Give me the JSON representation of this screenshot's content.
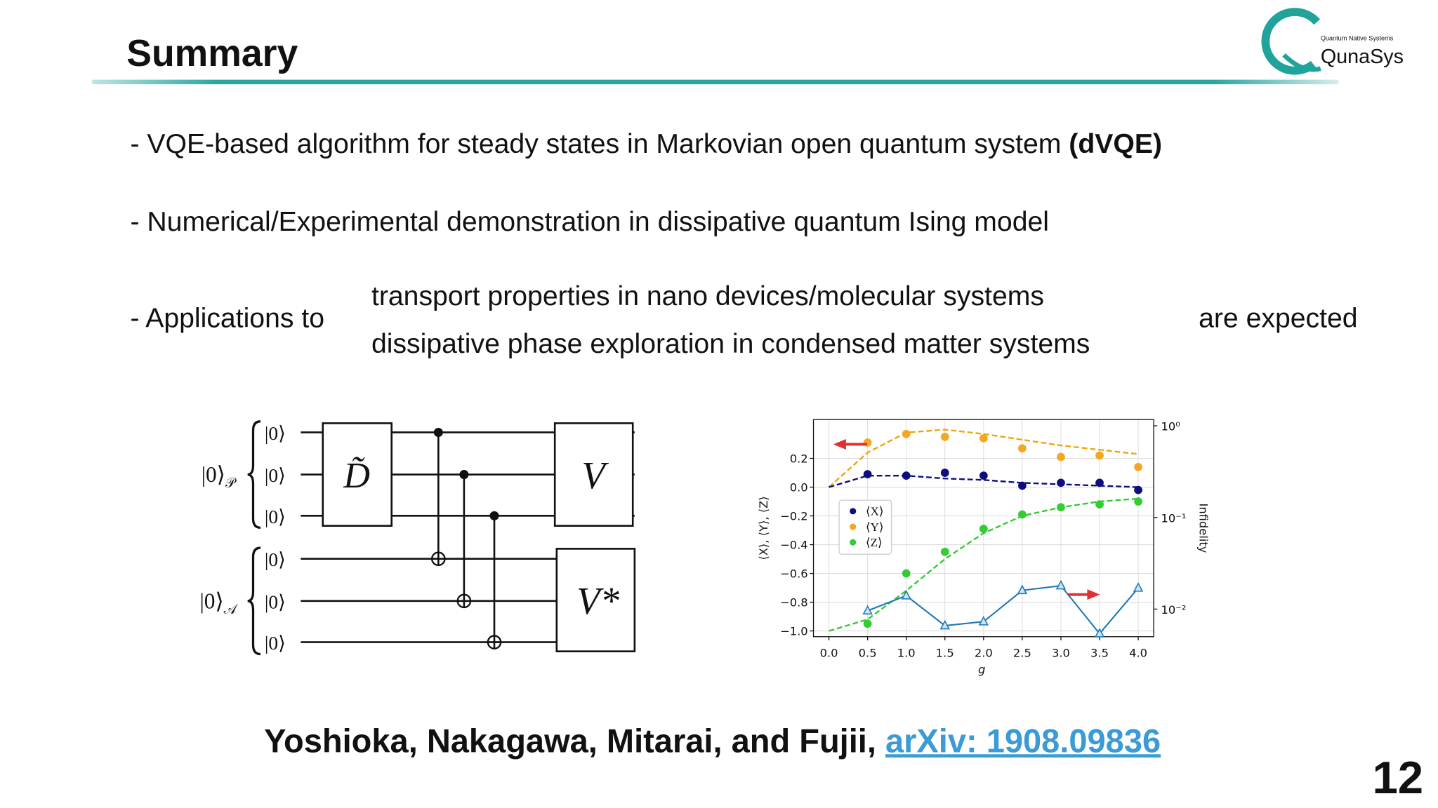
{
  "header": {
    "title": "Summary"
  },
  "logo": {
    "tagline": "Quantum Native Systems",
    "name": "QunaSys"
  },
  "bullets": [
    {
      "text": "- VQE-based algorithm for steady states in Markovian open quantum system",
      "emphasis": "(dVQE)"
    },
    {
      "text": "- Numerical/Experimental demonstration in dissipative quantum Ising model"
    }
  ],
  "applications": {
    "lead": "- Applications to",
    "items": [
      "transport properties in nano devices/molecular systems",
      "dissipative phase exploration in condensed matter systems"
    ],
    "tail": "are expected"
  },
  "circuit": {
    "registers": [
      {
        "ket": "|0⟩",
        "sub": "𝒫"
      },
      {
        "ket": "|0⟩",
        "sub": "𝒜"
      }
    ],
    "qubit_labels": [
      "|0⟩",
      "|0⟩",
      "|0⟩",
      "|0⟩",
      "|0⟩",
      "|0⟩"
    ],
    "gates": [
      "D̃",
      "V",
      "V*"
    ]
  },
  "chart_data": {
    "type": "scatter",
    "x": [
      0,
      0.5,
      1,
      1.5,
      2,
      2.5,
      3,
      3.5,
      4
    ],
    "xlabel": "g",
    "ylabel": "⟨X⟩, ⟨Y⟩, ⟨Z⟩",
    "y2label": "Infidelity",
    "xlim": [
      -0.2,
      4.2
    ],
    "ylim": [
      -1.04,
      0.47
    ],
    "y2lim": [
      0.005,
      1.17
    ],
    "y2scale": "log",
    "grid": true,
    "legend_loc": "center left",
    "xticks": [
      {
        "value": 0,
        "label": "0.0"
      },
      0.5,
      {
        "value": 1,
        "label": "1.0"
      },
      1.5,
      {
        "value": 2,
        "label": "2.0"
      },
      2.5,
      {
        "value": 3,
        "label": "3.0"
      },
      3.5,
      {
        "value": 4,
        "label": "4.0"
      }
    ],
    "yticks": [
      {
        "value": 0.2,
        "label": "0.2"
      },
      {
        "value": 0,
        "label": "0.0"
      },
      {
        "value": -0.2,
        "label": "−0.2"
      },
      {
        "value": -0.4,
        "label": "−0.4"
      },
      {
        "value": -0.6,
        "label": "−0.6"
      },
      {
        "value": -0.8,
        "label": "−0.8"
      },
      {
        "value": -1,
        "label": "−1.0"
      }
    ],
    "y2ticks": [
      {
        "value": 1,
        "label": "10⁰"
      },
      {
        "value": 0.1,
        "label": "10⁻¹"
      },
      {
        "value": 0.01,
        "label": "10⁻²"
      }
    ],
    "series": [
      {
        "color": "#f0a30a",
        "style": "dashed",
        "values": [
          0,
          0.24,
          0.38,
          0.4,
          0.37,
          0.33,
          0.29,
          0.26,
          0.23
        ]
      },
      {
        "color": "#0d0d80",
        "style": "dashed",
        "values": [
          0,
          0.08,
          0.08,
          0.06,
          0.05,
          0.03,
          0.02,
          0.01,
          0
        ]
      },
      {
        "color": "#2ecc2e",
        "style": "dashed",
        "values": [
          -1,
          -0.92,
          -0.72,
          -0.5,
          -0.32,
          -0.2,
          -0.14,
          -0.1,
          -0.08
        ]
      },
      {
        "name": "⟨X⟩",
        "color": "#0d0d80",
        "values": [
          null,
          0.09,
          0.08,
          0.1,
          0.08,
          0.01,
          0.03,
          0.03,
          -0.02
        ]
      },
      {
        "name": "⟨Y⟩",
        "color": "#f5a623",
        "values": [
          null,
          0.31,
          0.37,
          0.35,
          0.34,
          0.27,
          0.21,
          0.22,
          0.14
        ]
      },
      {
        "name": "⟨Z⟩",
        "color": "#33cc33",
        "values": [
          null,
          -0.95,
          -0.6,
          -0.45,
          -0.29,
          -0.19,
          -0.14,
          -0.12,
          -0.1
        ]
      },
      {
        "color": "#1f77b4",
        "axis": "y2",
        "marker": "triangle",
        "values": [
          null,
          0.0096,
          0.014,
          0.0066,
          0.0073,
          0.016,
          0.018,
          0.0054,
          0.017
        ]
      }
    ]
  },
  "citation": {
    "authors": "Yoshioka, Nakagawa, Mitarai, and Fujii, ",
    "link": "arXiv: 1908.09836"
  },
  "page_number": "12"
}
